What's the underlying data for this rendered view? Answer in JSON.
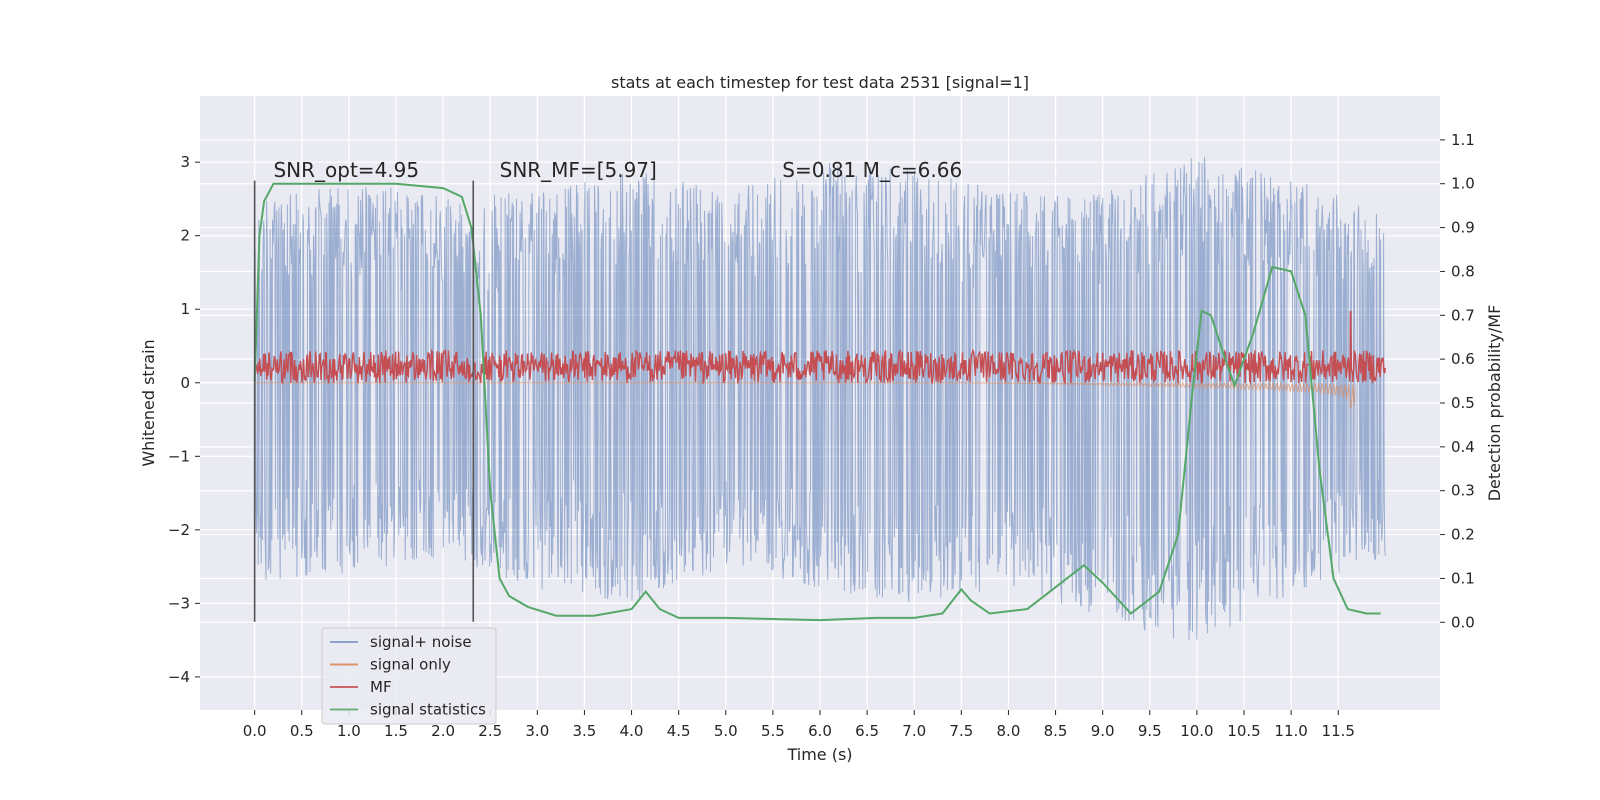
{
  "chart_data": {
    "type": "line",
    "title": "stats at each timestep for test data 2531 [signal=1]",
    "xlabel": "Time (s)",
    "ylabel": "Whitened strain",
    "ylabel_right": "Detection probability/MF",
    "xlim": [
      -0.58,
      12.58
    ],
    "ylim": [
      -4.45,
      3.9
    ],
    "ylim_right": [
      -0.2,
      1.2
    ],
    "xticks": [
      0.0,
      0.5,
      1.0,
      1.5,
      2.0,
      2.5,
      3.0,
      3.5,
      4.0,
      4.5,
      5.0,
      5.5,
      6.0,
      6.5,
      7.0,
      7.5,
      8.0,
      8.5,
      9.0,
      9.5,
      10.0,
      10.5,
      11.0,
      11.5
    ],
    "xtick_labels": [
      "0.0",
      "0.5",
      "1.0",
      "1.5",
      "2.0",
      "2.5",
      "3.0",
      "3.5",
      "4.0",
      "4.5",
      "5.0",
      "5.5",
      "6.0",
      "6.5",
      "7.0",
      "7.5",
      "8.0",
      "8.5",
      "9.0",
      "9.5",
      "10.0",
      "10.5",
      "11.0",
      "11.5"
    ],
    "yticks": [
      -4,
      -3,
      -2,
      -1,
      0,
      1,
      2,
      3
    ],
    "ytick_labels": [
      "−4",
      "−3",
      "−2",
      "−1",
      "0",
      "1",
      "2",
      "3"
    ],
    "yticks_right": [
      0.0,
      0.1,
      0.2,
      0.3,
      0.4,
      0.5,
      0.6,
      0.7,
      0.8,
      0.9,
      1.0,
      1.1
    ],
    "ytick_labels_right": [
      "0.0",
      "0.1",
      "0.2",
      "0.3",
      "0.4",
      "0.5",
      "0.6",
      "0.7",
      "0.8",
      "0.9",
      "1.0",
      "1.1"
    ],
    "grid": true,
    "legend_position": "lower-left",
    "annotations": [
      {
        "text": "SNR_opt=4.95",
        "x": 0.2,
        "y": 2.8
      },
      {
        "text": "SNR_MF=[5.97]",
        "x": 2.6,
        "y": 2.8
      },
      {
        "text": "S=0.81   M_c=6.66",
        "x": 5.6,
        "y": 2.8
      }
    ],
    "vlines": [
      {
        "x": 0.0,
        "ymin": -3.25,
        "ymax": 2.75
      },
      {
        "x": 2.32,
        "ymin": -3.25,
        "ymax": 2.75
      }
    ],
    "series": [
      {
        "name": "signal+ noise",
        "color": "#4c72b0",
        "axis": "left",
        "x_range": [
          0.0,
          12.0
        ],
        "upper_envelope": {
          "x": [
            0,
            1,
            2,
            3,
            4,
            5,
            6,
            7,
            8,
            9,
            10,
            11,
            12
          ],
          "y": [
            2.5,
            2.7,
            2.6,
            2.6,
            2.9,
            2.6,
            3.0,
            2.9,
            2.6,
            2.6,
            3.1,
            2.8,
            2.3
          ]
        },
        "lower_envelope": {
          "x": [
            0,
            1,
            2,
            3,
            4,
            5,
            6,
            7,
            8,
            9,
            10,
            11,
            12
          ],
          "y": [
            -2.7,
            -2.6,
            -2.4,
            -2.8,
            -3.0,
            -2.5,
            -2.8,
            -3.0,
            -2.8,
            -3.2,
            -3.6,
            -2.9,
            -2.4
          ]
        }
      },
      {
        "name": "signal only",
        "color": "#dd8452",
        "axis": "left",
        "x": [
          0,
          7.5,
          8.5,
          9.5,
          10.5,
          11.0,
          11.5,
          11.62,
          11.65,
          11.68
        ],
        "y": [
          0,
          0,
          -0.02,
          -0.05,
          -0.09,
          -0.12,
          -0.18,
          -0.25,
          -0.7,
          -0.1
        ]
      },
      {
        "name": "MF",
        "color": "#c44e52",
        "axis": "right",
        "x_range": [
          0.0,
          12.0
        ],
        "baseline": 0.58,
        "band": [
          0.545,
          0.62
        ],
        "spike": {
          "x": 11.63,
          "y": 0.71
        }
      },
      {
        "name": "signal statistics",
        "color": "#55a868",
        "axis": "right",
        "x": [
          0.0,
          0.05,
          0.1,
          0.2,
          0.3,
          0.5,
          1.0,
          1.5,
          2.0,
          2.2,
          2.3,
          2.4,
          2.45,
          2.5,
          2.6,
          2.7,
          2.9,
          3.2,
          3.6,
          4.0,
          4.15,
          4.3,
          4.5,
          5.0,
          6.0,
          6.6,
          7.0,
          7.3,
          7.5,
          7.6,
          7.8,
          8.2,
          8.5,
          8.8,
          9.0,
          9.3,
          9.6,
          9.8,
          9.95,
          10.05,
          10.15,
          10.3,
          10.4,
          10.6,
          10.8,
          11.0,
          11.15,
          11.3,
          11.45,
          11.6,
          11.8,
          11.95
        ],
        "y": [
          0.55,
          0.88,
          0.96,
          1.0,
          1.0,
          1.0,
          1.0,
          1.0,
          0.99,
          0.97,
          0.9,
          0.7,
          0.5,
          0.3,
          0.1,
          0.06,
          0.035,
          0.015,
          0.015,
          0.03,
          0.07,
          0.03,
          0.01,
          0.01,
          0.005,
          0.01,
          0.01,
          0.02,
          0.075,
          0.05,
          0.02,
          0.03,
          0.08,
          0.13,
          0.09,
          0.02,
          0.07,
          0.2,
          0.52,
          0.71,
          0.7,
          0.6,
          0.54,
          0.66,
          0.81,
          0.8,
          0.7,
          0.35,
          0.1,
          0.03,
          0.02,
          0.02
        ]
      }
    ]
  }
}
